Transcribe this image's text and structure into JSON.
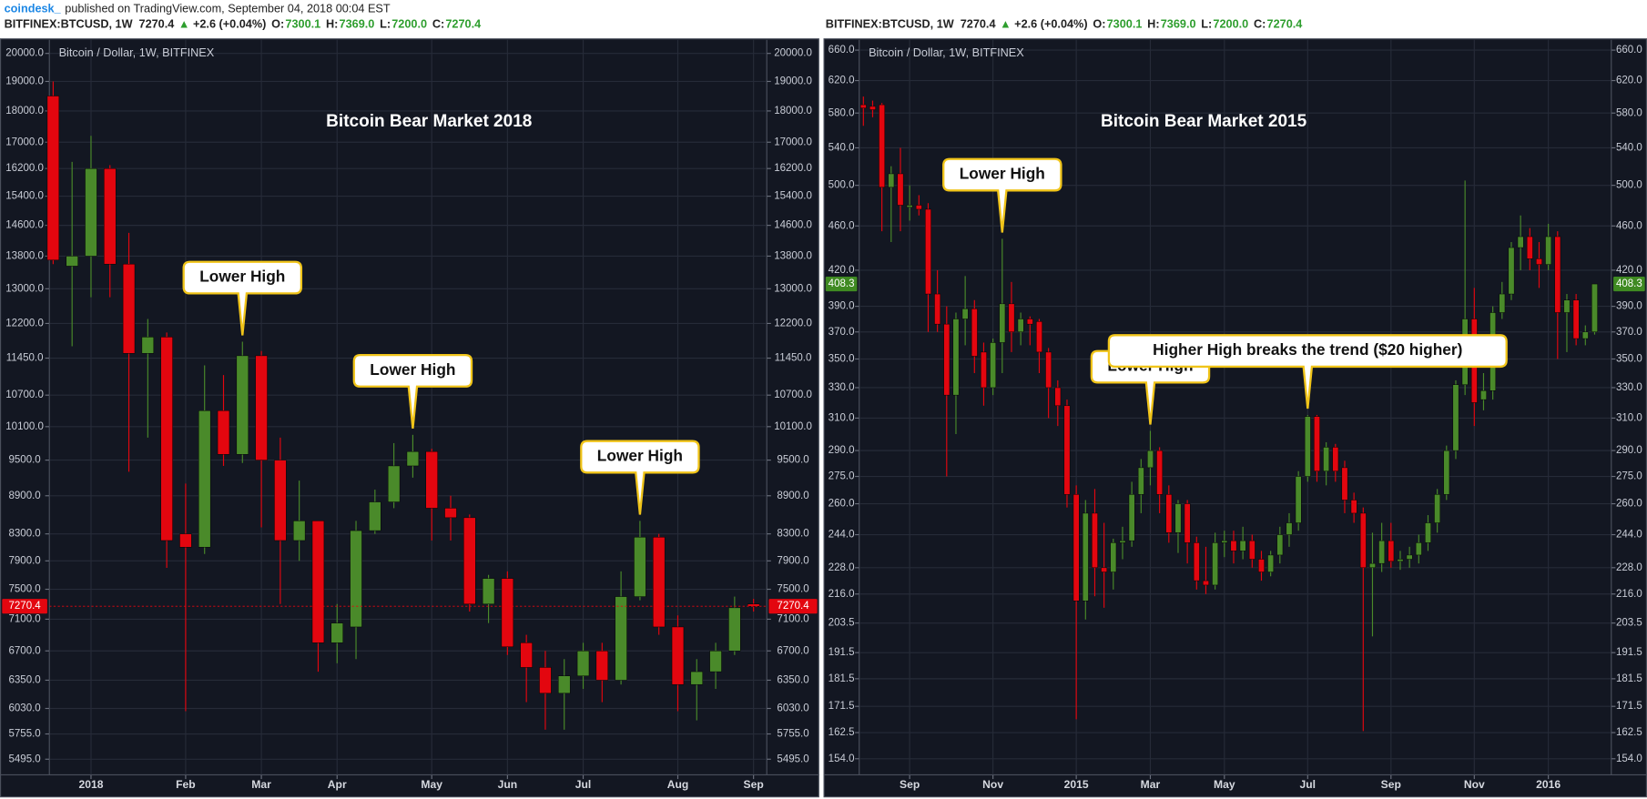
{
  "header": {
    "author": "coindesk_",
    "published": "published on TradingView.com, September 04, 2018 00:04 EST",
    "quote": {
      "symbol": "BITFINEX:BTCUSD, 1W",
      "price": "7270.4",
      "arrow": "▲",
      "change": "+2.6 (+0.04%)",
      "fields": [
        {
          "key": "O:",
          "value": "7300.1"
        },
        {
          "key": "H:",
          "value": "7369.0"
        },
        {
          "key": "L:",
          "value": "7200.0"
        },
        {
          "key": "C:",
          "value": "7270.4"
        }
      ]
    }
  },
  "chart_data": [
    {
      "type": "candlestick",
      "title": "Bitcoin Bear Market 2018",
      "label": "Bitcoin / Dollar, 1W, BITFINEX",
      "up_color": "#4a8a2a",
      "down_color": "#e3060f",
      "ylog": true,
      "grid": true,
      "ylim": [
        5340,
        20500
      ],
      "yticks": [
        {
          "value": 5495,
          "label": "5495.0"
        },
        {
          "value": 5755,
          "label": "5755.0"
        },
        {
          "value": 6030,
          "label": "6030.0"
        },
        {
          "value": 6350,
          "label": "6350.0"
        },
        {
          "value": 6700,
          "label": "6700.0"
        },
        {
          "value": 7100,
          "label": "7100.0"
        },
        {
          "value": 7500,
          "label": "7500.0"
        },
        {
          "value": 7900,
          "label": "7900.0"
        },
        {
          "value": 8300,
          "label": "8300.0"
        },
        {
          "value": 8900,
          "label": "8900.0"
        },
        {
          "value": 9500,
          "label": "9500.0"
        },
        {
          "value": 10100,
          "label": "10100.0"
        },
        {
          "value": 10700,
          "label": "10700.0"
        },
        {
          "value": 11450,
          "label": "11450.0"
        },
        {
          "value": 12200,
          "label": "12200.0"
        },
        {
          "value": 13000,
          "label": "13000.0"
        },
        {
          "value": 13800,
          "label": "13800.0"
        },
        {
          "value": 14600,
          "label": "14600.0"
        },
        {
          "value": 15400,
          "label": "15400.0"
        },
        {
          "value": 16200,
          "label": "16200.0"
        },
        {
          "value": 17000,
          "label": "17000.0"
        },
        {
          "value": 18000,
          "label": "18000.0"
        },
        {
          "value": 19000,
          "label": "19000.0"
        },
        {
          "value": 20000,
          "label": "20000.0"
        }
      ],
      "xlim": [
        -0.2,
        37.7
      ],
      "xticks": [
        {
          "value": 2,
          "label": "2018"
        },
        {
          "value": 7,
          "label": "Feb"
        },
        {
          "value": 11,
          "label": "Mar"
        },
        {
          "value": 15,
          "label": "Apr"
        },
        {
          "value": 20,
          "label": "May"
        },
        {
          "value": 24,
          "label": "Jun"
        },
        {
          "value": 28,
          "label": "Jul"
        },
        {
          "value": 33,
          "label": "Aug"
        },
        {
          "value": 37,
          "label": "Sep"
        }
      ],
      "open": [
        18500,
        13550,
        13800,
        16200,
        13600,
        11550,
        11900,
        8300,
        8100,
        10400,
        9600,
        11500,
        9500,
        8200,
        8500,
        6800,
        7000,
        8350,
        8800,
        9400,
        9650,
        8700,
        8550,
        7300,
        7650,
        6800,
        6500,
        6200,
        6400,
        6700,
        6350,
        7400,
        8250,
        7000,
        6300,
        6450,
        6700,
        7300
      ],
      "high": [
        19000,
        16400,
        17200,
        16300,
        14400,
        12300,
        12000,
        9100,
        11300,
        11100,
        11800,
        11600,
        9900,
        9150,
        8500,
        7300,
        8500,
        9000,
        9800,
        9950,
        9700,
        8900,
        8600,
        7700,
        7750,
        6900,
        6700,
        6600,
        6800,
        6800,
        7750,
        8500,
        8300,
        7150,
        6600,
        6800,
        7400,
        7369
      ],
      "low": [
        13600,
        11700,
        12800,
        12800,
        9300,
        9900,
        7800,
        6000,
        8000,
        9400,
        9450,
        8400,
        7300,
        7900,
        6450,
        6550,
        6600,
        8300,
        8700,
        9200,
        8200,
        8200,
        7200,
        7050,
        6650,
        6100,
        5800,
        5800,
        6250,
        6100,
        6300,
        7350,
        6900,
        6000,
        5900,
        6250,
        6650,
        7200
      ],
      "close": [
        13700,
        13800,
        16200,
        13600,
        11550,
        11900,
        8200,
        8100,
        10400,
        9600,
        11500,
        9500,
        8200,
        8500,
        6800,
        7050,
        8350,
        8800,
        9400,
        9650,
        8700,
        8550,
        7300,
        7650,
        6750,
        6500,
        6200,
        6400,
        6700,
        6350,
        7400,
        8250,
        7000,
        6300,
        6450,
        6700,
        7250,
        7270
      ],
      "last": 7270.4,
      "last_color": "#e3060f",
      "last_line": true,
      "annotations": [
        {
          "text": "Lower High",
          "x": 10
        },
        {
          "text": "Lower High",
          "x": 19
        },
        {
          "text": "Lower High",
          "x": 31
        }
      ]
    },
    {
      "type": "candlestick",
      "title": "Bitcoin Bear Market 2015",
      "label": "Bitcoin / Dollar, 1W, BITFINEX",
      "up_color": "#4a8a2a",
      "down_color": "#e3060f",
      "ylog": true,
      "grid": true,
      "ylim": [
        149,
        674
      ],
      "yticks": [
        {
          "value": 154,
          "label": "154.0"
        },
        162.5,
        171.5,
        181.5,
        191.5,
        203.5,
        {
          "value": 216,
          "label": "216.0"
        },
        {
          "value": 228,
          "label": "228.0"
        },
        {
          "value": 244,
          "label": "244.0"
        },
        {
          "value": 260,
          "label": "260.0"
        },
        {
          "value": 275,
          "label": "275.0"
        },
        {
          "value": 290,
          "label": "290.0"
        },
        {
          "value": 310,
          "label": "310.0"
        },
        {
          "value": 330,
          "label": "330.0"
        },
        {
          "value": 350,
          "label": "350.0"
        },
        {
          "value": 370,
          "label": "370.0"
        },
        {
          "value": 390,
          "label": "390.0"
        },
        {
          "value": 420,
          "label": "420.0"
        },
        {
          "value": 460,
          "label": "460.0"
        },
        {
          "value": 500,
          "label": "500.0"
        },
        {
          "value": 540,
          "label": "540.0"
        },
        {
          "value": 580,
          "label": "580.0"
        },
        {
          "value": 620,
          "label": "620.0"
        },
        {
          "value": 660,
          "label": "660.0"
        }
      ],
      "xlim": [
        -0.45,
        80.8
      ],
      "xticks": [
        {
          "value": 5,
          "label": "Sep"
        },
        {
          "value": 14,
          "label": "Nov"
        },
        {
          "value": 23,
          "label": "2015"
        },
        {
          "value": 31,
          "label": "Mar"
        },
        {
          "value": 39,
          "label": "May"
        },
        {
          "value": 48,
          "label": "Jul"
        },
        {
          "value": 57,
          "label": "Sep"
        },
        {
          "value": 66,
          "label": "Nov"
        },
        {
          "value": 74,
          "label": "2016"
        }
      ],
      "open": [
        590,
        588,
        590,
        498,
        512,
        478,
        480,
        476,
        400,
        376,
        325,
        380,
        388,
        355,
        330,
        362,
        392,
        370,
        380,
        378,
        355,
        330,
        318,
        265,
        213,
        255,
        228,
        226,
        240,
        241,
        265,
        280,
        290,
        265,
        245,
        260,
        240,
        222,
        220,
        240,
        241,
        236,
        241,
        232,
        226,
        234,
        244,
        250,
        275,
        311,
        278,
        292,
        280,
        262,
        255,
        228,
        230,
        241,
        231,
        232,
        234,
        240,
        250,
        265,
        290,
        332,
        380,
        322,
        328,
        385,
        400,
        440,
        450,
        430,
        425,
        450,
        385,
        395,
        365,
        370
      ],
      "high": [
        600,
        595,
        592,
        520,
        540,
        500,
        490,
        482,
        420,
        390,
        385,
        415,
        395,
        362,
        365,
        448,
        410,
        385,
        382,
        380,
        358,
        335,
        322,
        270,
        262,
        268,
        250,
        242,
        248,
        272,
        285,
        302,
        292,
        270,
        262,
        262,
        243,
        238,
        245,
        246,
        246,
        248,
        244,
        236,
        236,
        248,
        255,
        278,
        312,
        312,
        295,
        294,
        284,
        266,
        258,
        245,
        250,
        250,
        236,
        238,
        244,
        254,
        268,
        293,
        335,
        505,
        405,
        340,
        390,
        410,
        445,
        470,
        458,
        445,
        462,
        455,
        400,
        400,
        375,
        408.3
      ],
      "low": [
        565,
        575,
        455,
        445,
        455,
        465,
        470,
        370,
        370,
        275,
        300,
        360,
        340,
        318,
        325,
        340,
        355,
        360,
        360,
        340,
        310,
        305,
        258,
        167,
        205,
        215,
        210,
        218,
        232,
        238,
        255,
        270,
        255,
        240,
        235,
        230,
        218,
        216,
        218,
        233,
        230,
        232,
        228,
        222,
        224,
        230,
        238,
        246,
        272,
        272,
        270,
        272,
        255,
        250,
        163,
        198,
        226,
        228,
        227,
        228,
        230,
        236,
        245,
        262,
        285,
        325,
        305,
        315,
        322,
        380,
        395,
        420,
        420,
        405,
        420,
        350,
        355,
        360,
        360,
        368
      ],
      "close": [
        586,
        584,
        498,
        512,
        480,
        480,
        476,
        400,
        376,
        325,
        380,
        388,
        352,
        330,
        362,
        392,
        370,
        380,
        376,
        355,
        330,
        318,
        265,
        213,
        255,
        228,
        226,
        240,
        241,
        265,
        280,
        290,
        265,
        245,
        260,
        240,
        222,
        220,
        240,
        241,
        236,
        241,
        232,
        226,
        234,
        244,
        250,
        275,
        311,
        278,
        292,
        278,
        262,
        255,
        228,
        230,
        241,
        231,
        232,
        234,
        240,
        250,
        265,
        290,
        332,
        380,
        320,
        328,
        385,
        400,
        440,
        450,
        430,
        425,
        450,
        385,
        395,
        365,
        370,
        408.3
      ],
      "last": 408.3,
      "last_color": "#3f8a22",
      "last_line": false,
      "annotations": [
        {
          "text": "Lower High",
          "x": 15
        },
        {
          "text": "Lower High",
          "x": 31
        },
        {
          "text": "Higher High breaks the trend ($20 higher)",
          "x": 48
        }
      ]
    }
  ]
}
